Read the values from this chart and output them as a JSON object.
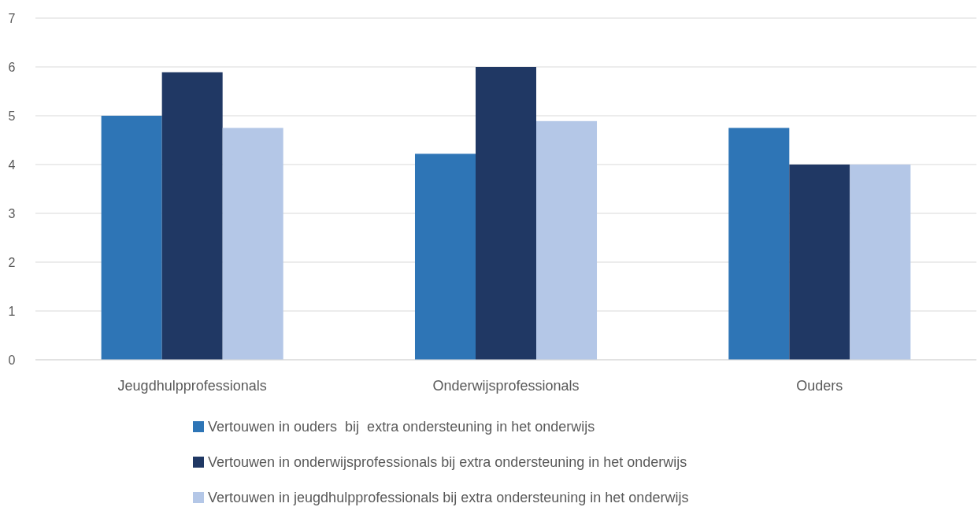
{
  "chart_data": {
    "type": "bar",
    "categories": [
      "Jeugdhulpprofessionals",
      "Onderwijsprofessionals",
      "Ouders"
    ],
    "series": [
      {
        "name": "Vertouwen in ouders  bij  extra ondersteuning in het onderwijs",
        "color": "#2e75b6",
        "values": [
          5.0,
          4.22,
          4.75
        ]
      },
      {
        "name": "Vertouwen in onderwijsprofessionals bij extra ondersteuning in het onderwijs",
        "color": "#203864",
        "values": [
          5.89,
          6.0,
          4.0
        ]
      },
      {
        "name": "Vertouwen in jeugdhulpprofessionals bij extra ondersteuning in het onderwijs",
        "color": "#b4c7e7",
        "values": [
          4.75,
          4.89,
          4.0
        ]
      }
    ],
    "ylim": [
      0,
      7
    ],
    "yticks": [
      0,
      1,
      2,
      3,
      4,
      5,
      6,
      7
    ],
    "grid": "y",
    "legend": "bottom"
  }
}
